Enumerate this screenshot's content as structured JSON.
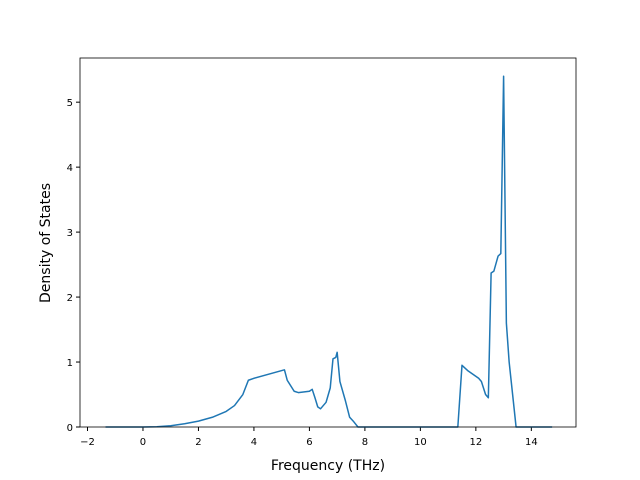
{
  "chart_data": {
    "type": "line",
    "x_label": "Frequency (THz)",
    "y_label": "Density of States",
    "x": [
      -1.35,
      0,
      0.5,
      1,
      1.5,
      2,
      2.5,
      3,
      3.3,
      3.6,
      3.8,
      4,
      5.1,
      5.2,
      5.45,
      5.6,
      6.0,
      6.1,
      6.2,
      6.3,
      6.4,
      6.6,
      6.75,
      6.85,
      6.95,
      7.0,
      7.1,
      7.3,
      7.45,
      7.6,
      7.75,
      11.35,
      11.5,
      11.7,
      12.1,
      12.2,
      12.35,
      12.45,
      12.55,
      12.65,
      12.8,
      12.9,
      13.0,
      13.1,
      13.2,
      13.35,
      13.45,
      14.75
    ],
    "values": [
      0,
      0,
      0.003,
      0.02,
      0.05,
      0.09,
      0.15,
      0.24,
      0.33,
      0.5,
      0.72,
      0.75,
      0.88,
      0.72,
      0.55,
      0.53,
      0.55,
      0.58,
      0.45,
      0.31,
      0.28,
      0.38,
      0.6,
      1.05,
      1.07,
      1.15,
      0.7,
      0.4,
      0.15,
      0.08,
      0,
      0,
      0.95,
      0.87,
      0.75,
      0.7,
      0.5,
      0.45,
      2.37,
      2.4,
      2.63,
      2.67,
      5.4,
      1.6,
      1.0,
      0.4,
      0,
      0
    ],
    "color": "#1f77b4",
    "xlim": [
      -2.27,
      15.61
    ],
    "xticks": [
      {
        "value": -2,
        "label": "−2"
      },
      0,
      2,
      4,
      6,
      8,
      10,
      12,
      14
    ],
    "ylim": [
      0,
      5.68
    ],
    "yticks": [
      0,
      1,
      2,
      3,
      4,
      5
    ]
  }
}
